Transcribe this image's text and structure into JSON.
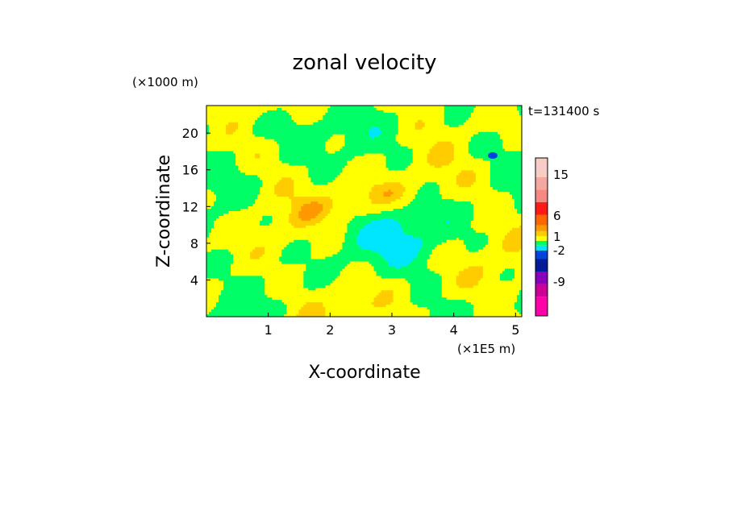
{
  "chart_data": {
    "type": "heatmap",
    "title": "zonal velocity",
    "time_label": "t=131400 s",
    "xlabel": "X-coordinate",
    "ylabel": "Z-coordinate",
    "x_unit": "(×1E5 m)",
    "y_unit": "(×1000 m)",
    "xlim": [
      0,
      5.1
    ],
    "ylim": [
      0,
      23
    ],
    "x_ticks": [
      1,
      2,
      3,
      4,
      5
    ],
    "y_ticks": [
      4,
      8,
      12,
      16,
      20
    ],
    "colorbar": {
      "colors": [
        "#ff00aa",
        "#cc0099",
        "#8800bb",
        "#001a99",
        "#0044dd",
        "#00e6ff",
        "#00ff66",
        "#ffff00",
        "#ffcc00",
        "#ff9900",
        "#ff6600",
        "#ff1a1a",
        "#f58a80",
        "#f5a8a0",
        "#f9cbc6"
      ],
      "tick_labels": [
        "15",
        "6",
        "1",
        "-2",
        "-9"
      ]
    },
    "field_colors": {
      "neg_light": "#00e6ff",
      "near_zero": "#00ff66",
      "pos_light": "#ffff00",
      "pos_mid": "#ffcc00",
      "pos_high": "#ff9900",
      "neg_strong": "#0044dd"
    }
  }
}
